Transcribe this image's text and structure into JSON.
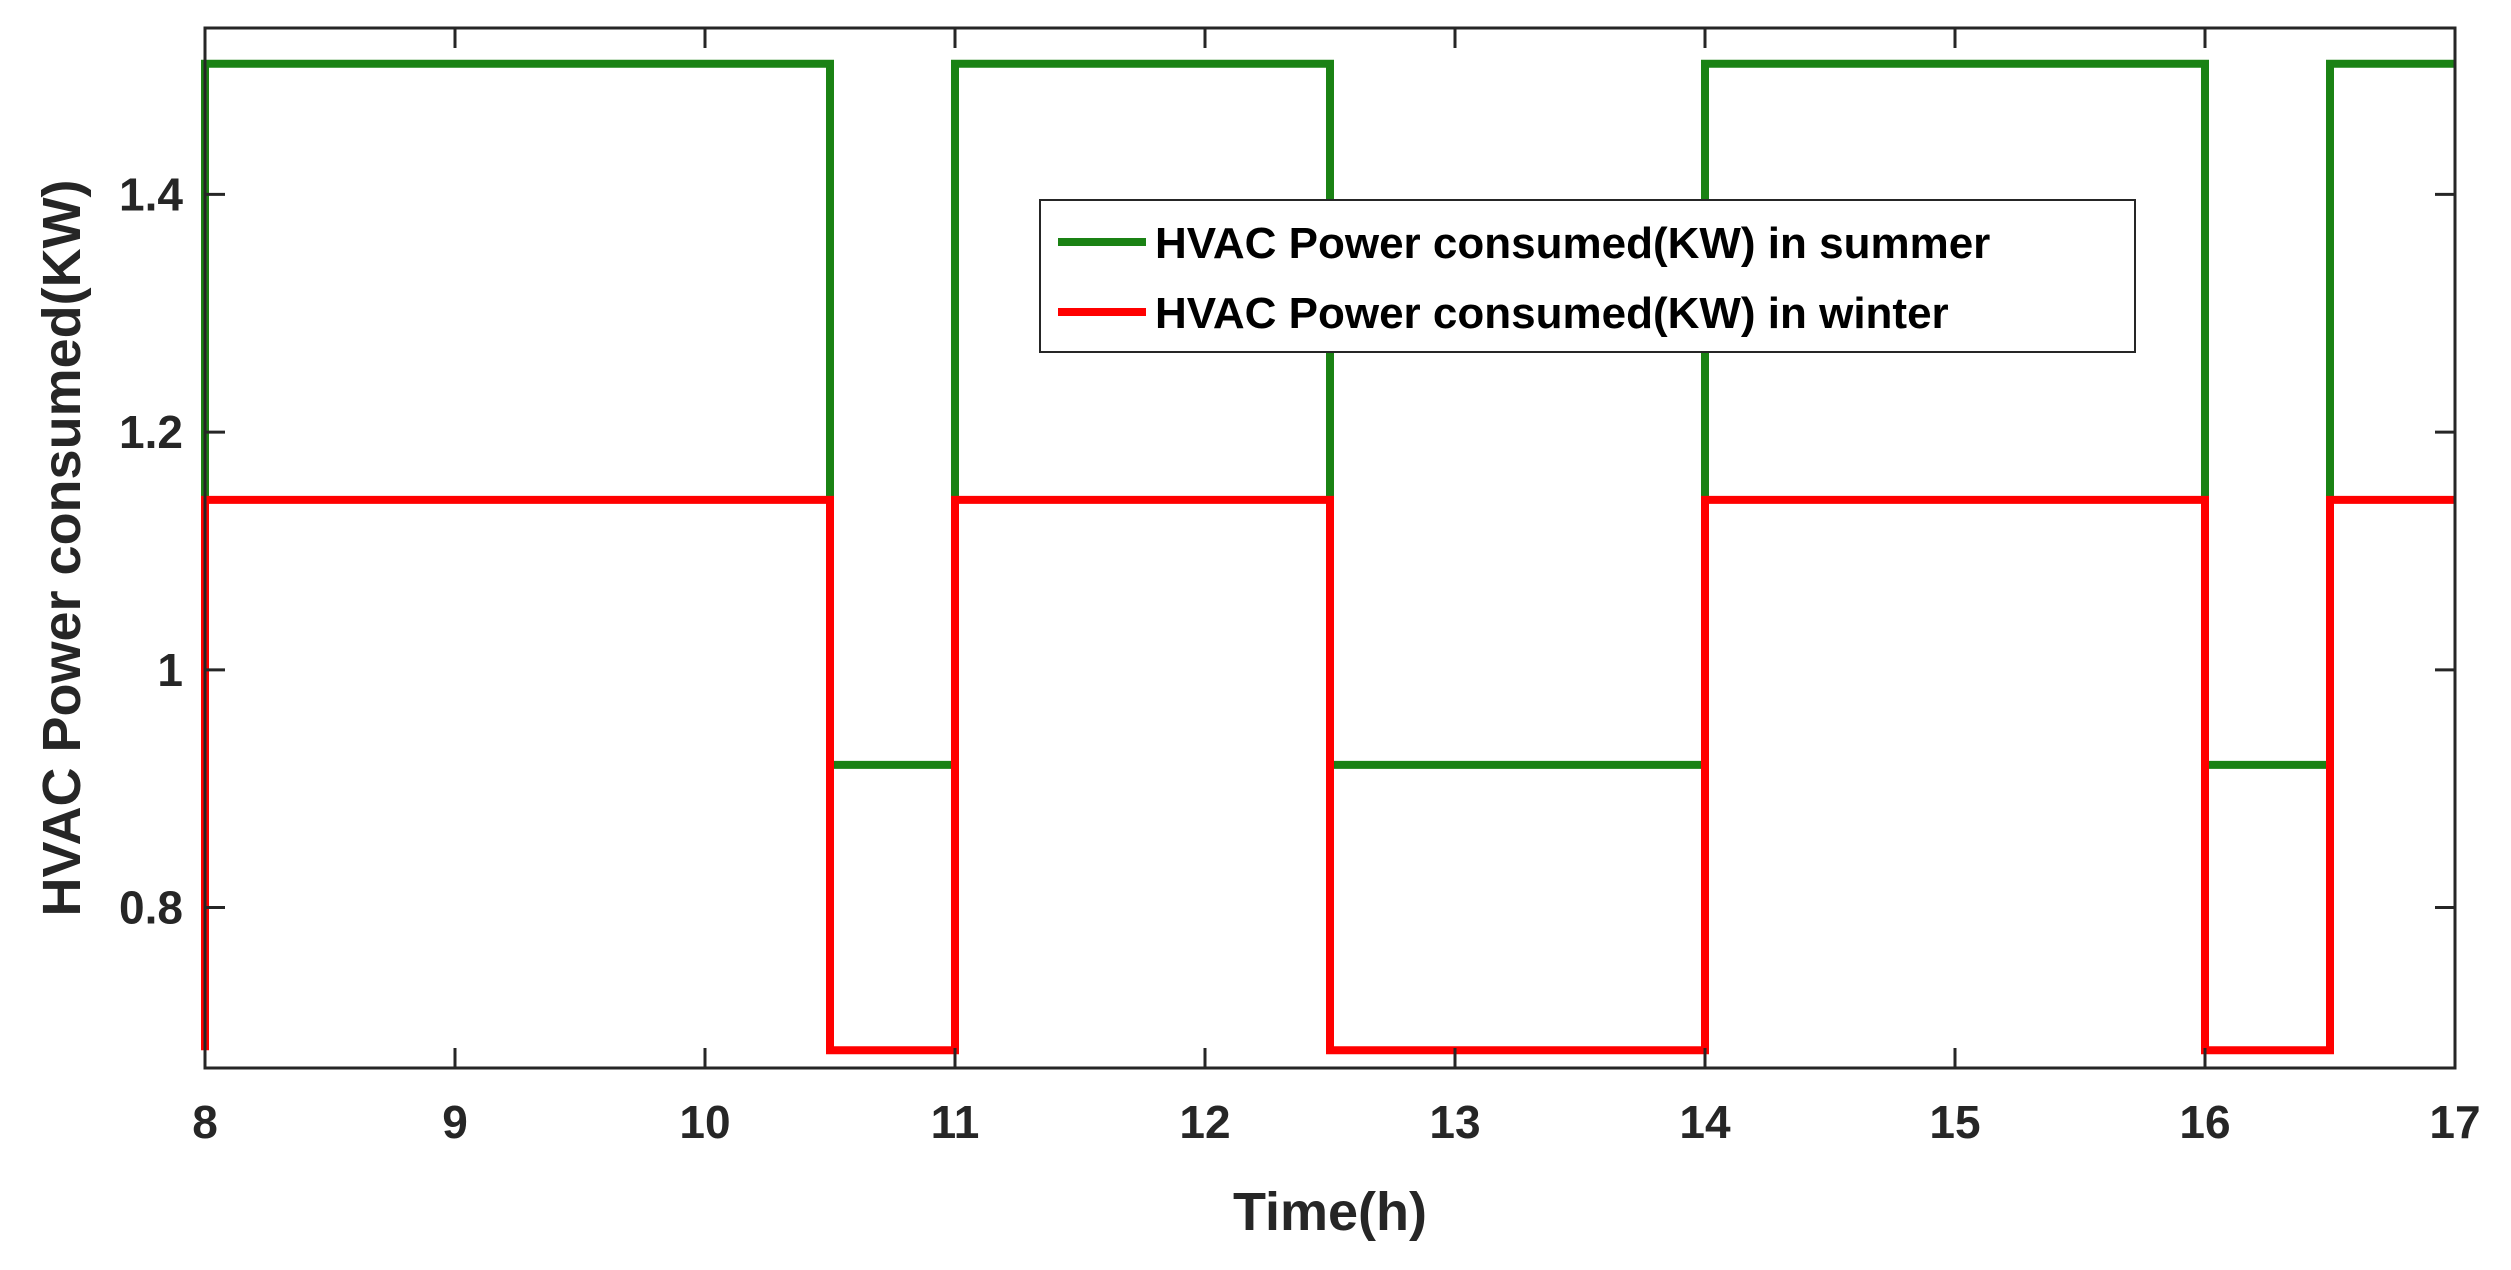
{
  "chart_data": {
    "type": "line",
    "step": true,
    "title": "",
    "xlabel": "Time(h)",
    "ylabel": "HVAC Power consumed(KW)",
    "xlim": [
      8,
      17
    ],
    "ylim": [
      0.665,
      1.54
    ],
    "xticks": [
      8,
      9,
      10,
      11,
      12,
      13,
      14,
      15,
      16,
      17
    ],
    "xtick_labels": [
      "8",
      "9",
      "10",
      "11",
      "12",
      "13",
      "14",
      "15",
      "16",
      "17"
    ],
    "yticks": [
      0.8,
      1.0,
      1.2,
      1.4
    ],
    "ytick_labels": [
      "0.8",
      "1",
      "1.2",
      "1.4"
    ],
    "grid": false,
    "legend_position": "top-center",
    "series": [
      {
        "name": "HVAC Power consumed(KW) in summer",
        "color": "#1a8214",
        "x": [
          8,
          8,
          10.5,
          10.5,
          11,
          11,
          12.5,
          12.5,
          14,
          14,
          16,
          16,
          16.5,
          16.5,
          17
        ],
        "y": [
          1.14,
          1.51,
          1.51,
          0.92,
          0.92,
          1.51,
          1.51,
          0.92,
          0.92,
          1.51,
          1.51,
          0.92,
          0.92,
          1.51,
          1.51
        ]
      },
      {
        "name": "HVAC Power consumed(KW) in winter",
        "color": "#ff0000",
        "x": [
          8,
          8,
          10.5,
          10.5,
          11,
          11,
          12.5,
          12.5,
          14,
          14,
          16,
          16,
          16.5,
          16.5,
          17
        ],
        "y": [
          0.68,
          1.143,
          1.143,
          0.68,
          0.68,
          1.143,
          1.143,
          0.68,
          0.68,
          1.143,
          1.143,
          0.68,
          0.68,
          1.143,
          1.143
        ]
      }
    ]
  }
}
